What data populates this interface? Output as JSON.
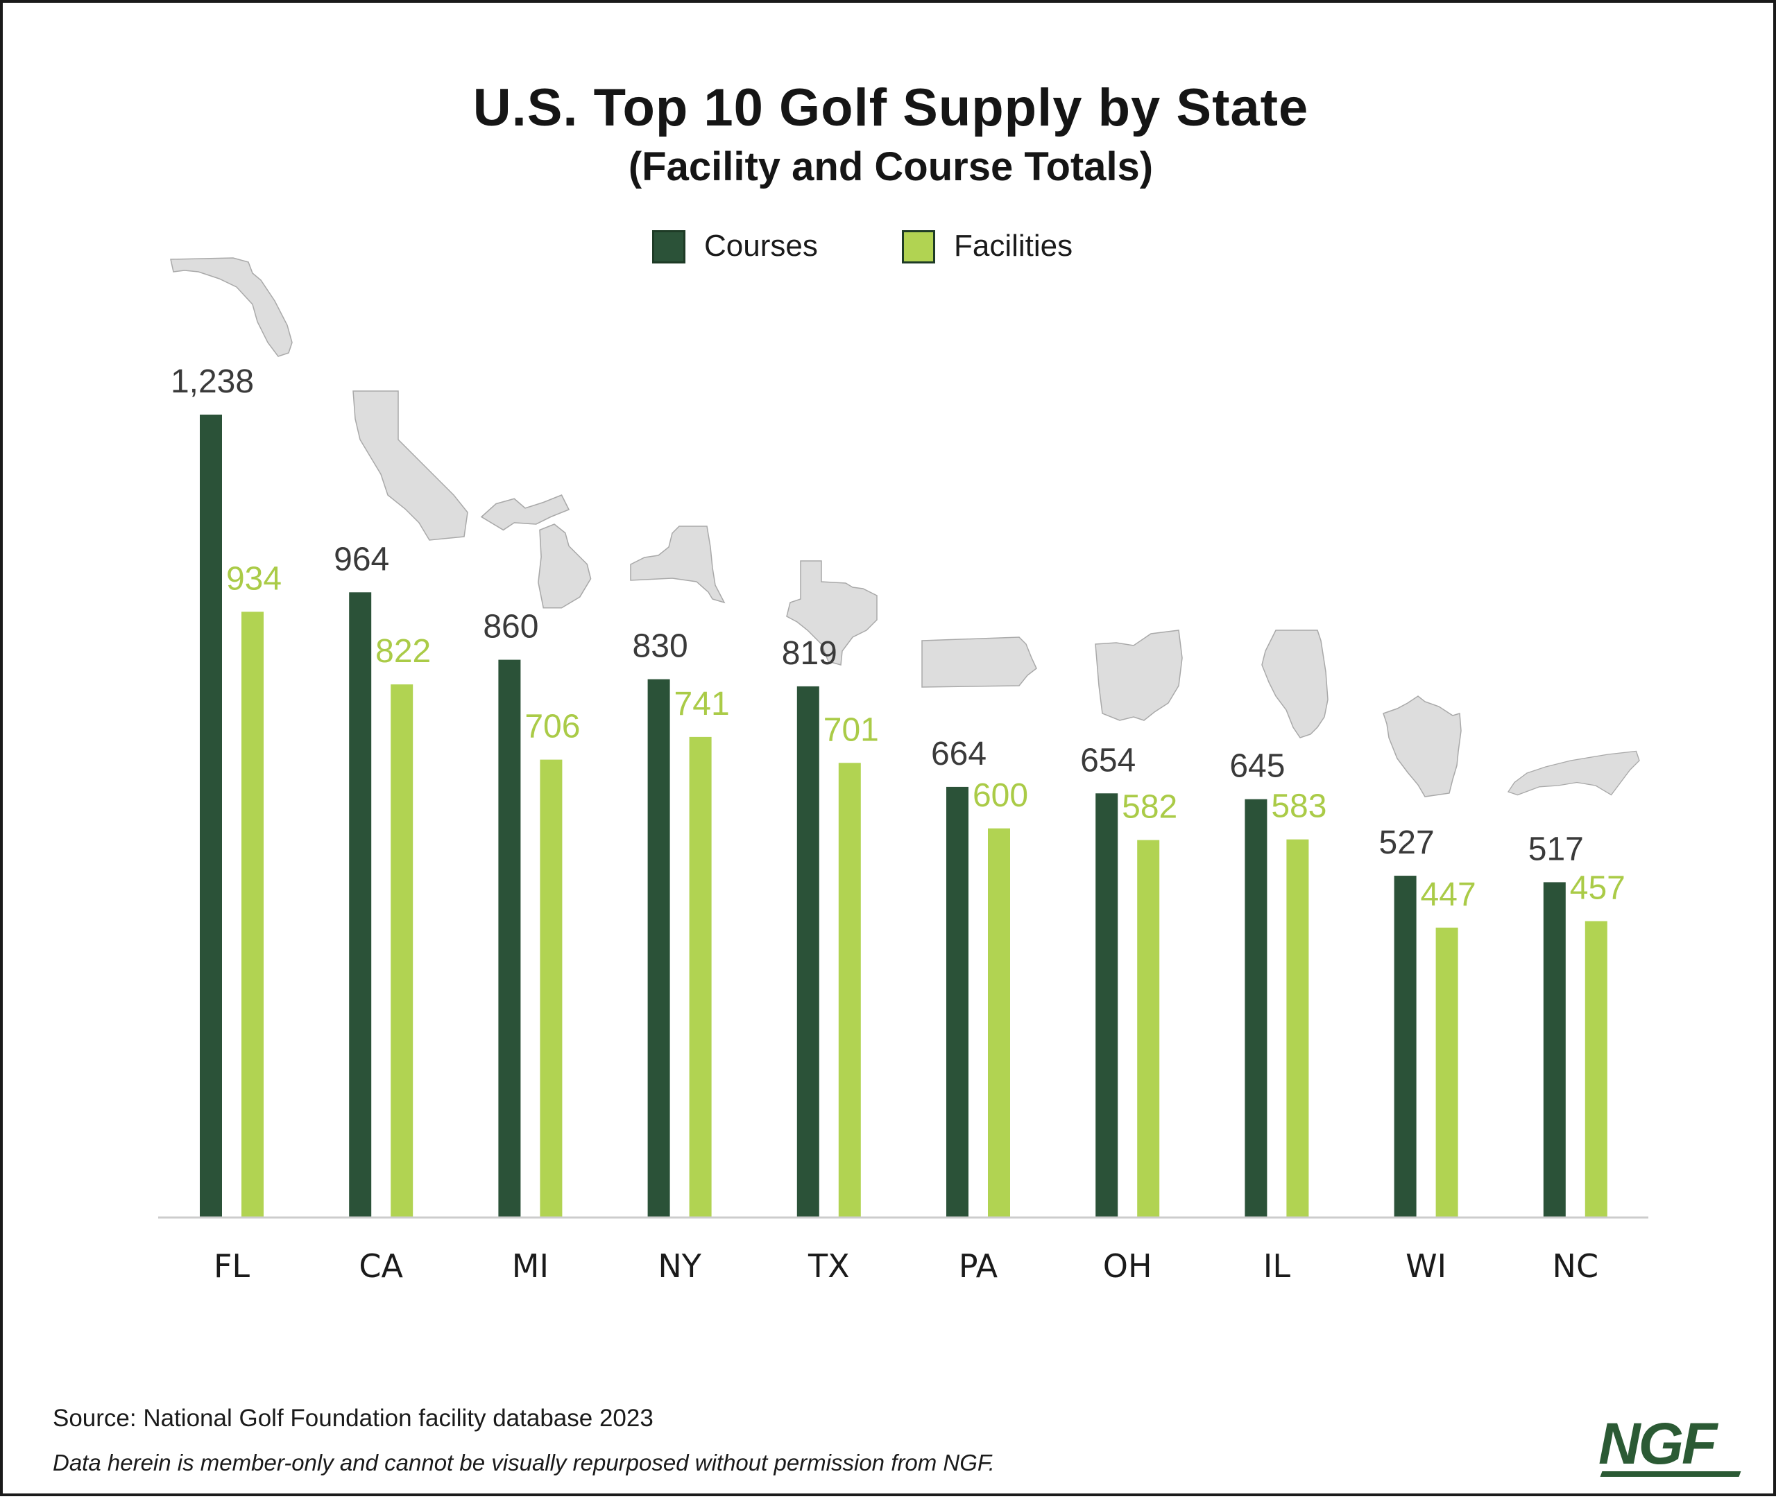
{
  "colors": {
    "courses": "#2b5238",
    "facilities": "#b1d352",
    "courses_label": "#3a3a3a",
    "facilities_label": "#aacb47",
    "state_shape": "#dddddd",
    "axis": "#cccccc"
  },
  "legend": {
    "courses_label": "Courses",
    "facilities_label": "Facilities"
  },
  "footer": {
    "source": "Source: National Golf Foundation facility database 2023",
    "disclaimer": "Data herein is member-only and cannot be visually repurposed without permission from NGF.",
    "logo_text": "NGF"
  },
  "chart_data": {
    "type": "bar",
    "title": "U.S. Top 10 Golf Supply by State",
    "subtitle": "(Facility and Course Totals)",
    "categories": [
      "FL",
      "CA",
      "MI",
      "NY",
      "TX",
      "PA",
      "OH",
      "IL",
      "WI",
      "NC"
    ],
    "series": [
      {
        "name": "Courses",
        "values": [
          1238,
          964,
          860,
          830,
          819,
          664,
          654,
          645,
          527,
          517
        ],
        "labels": [
          "1,238",
          "964",
          "860",
          "830",
          "819",
          "664",
          "654",
          "645",
          "527",
          "517"
        ]
      },
      {
        "name": "Facilities",
        "values": [
          934,
          822,
          706,
          741,
          701,
          600,
          582,
          583,
          447,
          457
        ],
        "labels": [
          "934",
          "822",
          "706",
          "741",
          "701",
          "600",
          "582",
          "583",
          "447",
          "457"
        ]
      }
    ],
    "ylim": [
      0,
      1240
    ],
    "grid": false,
    "legend_position": "top-center",
    "state_icons": [
      "florida-shape",
      "california-shape",
      "michigan-shape",
      "new-york-shape",
      "texas-shape",
      "pennsylvania-shape",
      "ohio-shape",
      "illinois-shape",
      "wisconsin-shape",
      "north-carolina-shape"
    ]
  }
}
